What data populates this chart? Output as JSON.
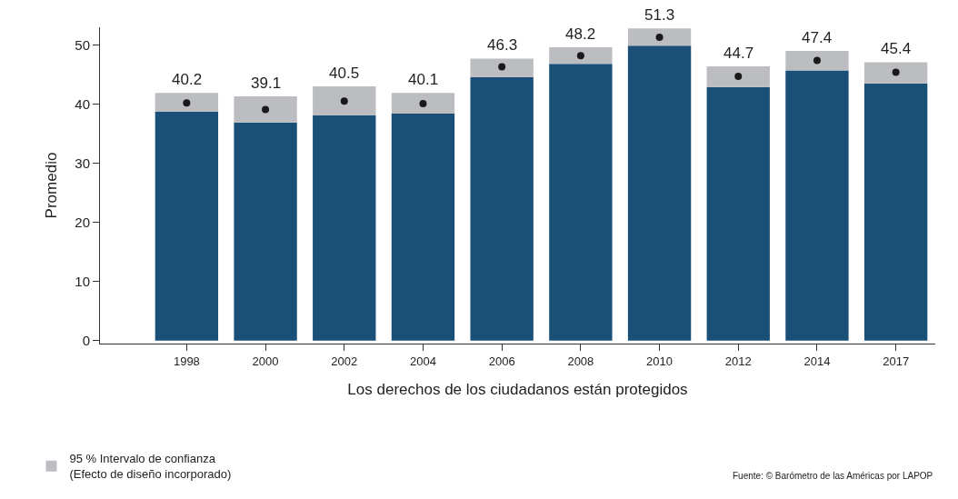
{
  "chart_data": {
    "type": "bar",
    "stacked": true,
    "xlabel": "Los derechos de los ciudadanos están protegidos",
    "ylabel": "Promedio",
    "categories": [
      "1998",
      "2000",
      "2002",
      "2004",
      "2006",
      "2008",
      "2010",
      "2012",
      "2014",
      "2017"
    ],
    "series": [
      {
        "color": "#1a4f78",
        "values": [
          38.7,
          36.9,
          38.1,
          38.4,
          44.6,
          46.8,
          49.9,
          42.9,
          45.7,
          43.5
        ]
      },
      {
        "name": "95 % Intervalo de confianza\n(Efecto de diseño incorporado)",
        "color": "#bcbdc1",
        "values": [
          3.2,
          4.4,
          4.9,
          3.5,
          3.1,
          2.8,
          2.9,
          3.5,
          3.3,
          3.6
        ]
      },
      {
        "type": "scatter",
        "marker": "circle",
        "color": "#1a1a1a",
        "values": [
          40.2,
          39.1,
          40.5,
          40.1,
          46.3,
          48.2,
          51.3,
          44.7,
          47.4,
          45.4
        ],
        "value_labels": [
          "40.2",
          "39.1",
          "40.5",
          "40.1",
          "46.3",
          "48.2",
          "51.3",
          "44.7",
          "47.4",
          "45.4"
        ]
      }
    ],
    "ylim": [
      -0.5,
      53
    ],
    "yticks": [
      0,
      10,
      20,
      30,
      40,
      50
    ],
    "legend": "bottom left",
    "annotations": [
      "Fuente: © Barómetro de las Américas por LAPOP"
    ]
  }
}
